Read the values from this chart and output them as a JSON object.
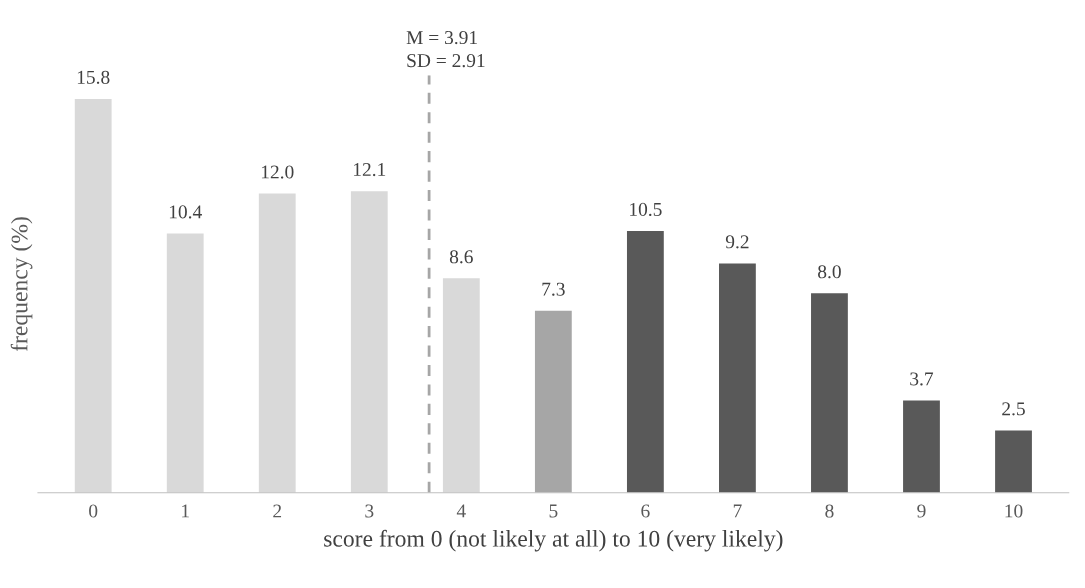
{
  "chart_data": {
    "type": "bar",
    "xlabel": "score from 0 (not likely at all) to 10 (very likely)",
    "ylabel": "frequency (%)",
    "x": [
      0,
      1,
      2,
      3,
      4,
      5,
      6,
      7,
      8,
      9,
      10
    ],
    "xlim": [
      -0.6,
      10.6
    ],
    "xticks": [
      0,
      1,
      2,
      3,
      4,
      5,
      6,
      7,
      8,
      9,
      10
    ],
    "values": [
      15.8,
      10.4,
      12.0,
      12.1,
      8.6,
      7.3,
      10.5,
      9.2,
      8.0,
      3.7,
      2.5
    ],
    "value_labels": [
      "15.8",
      "10.4",
      "12.0",
      "12.1",
      "8.6",
      "7.3",
      "10.5",
      "9.2",
      "8.0",
      "3.7",
      "2.5"
    ],
    "colors": [
      "#d9d9d9",
      "#d9d9d9",
      "#d9d9d9",
      "#d9d9d9",
      "#d9d9d9",
      "#a6a6a6",
      "#595959",
      "#595959",
      "#595959",
      "#595959",
      "#595959"
    ],
    "ref_lines": [
      {
        "axis": "x",
        "value": 3.65,
        "color": "#a6a6a6",
        "line_style": "dashed"
      }
    ],
    "annotations": [
      "M = 3.91\nSD = 2.91"
    ],
    "tick_labels": "x",
    "grid": false,
    "legend": false
  }
}
